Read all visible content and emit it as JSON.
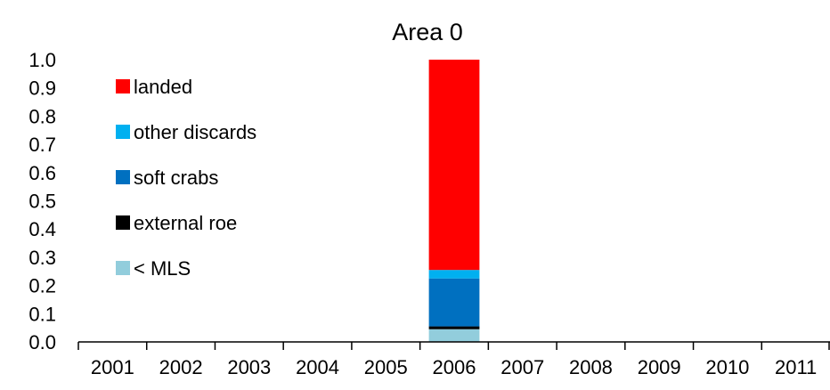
{
  "chart_data": {
    "type": "bar",
    "stacked": true,
    "title": "Area 0",
    "xlabel": "",
    "ylabel": "",
    "ylim": [
      0,
      1.0
    ],
    "yticks": [
      "0.0",
      "0.1",
      "0.2",
      "0.3",
      "0.4",
      "0.5",
      "0.6",
      "0.7",
      "0.8",
      "0.9",
      "1.0"
    ],
    "categories": [
      "2001",
      "2002",
      "2003",
      "2004",
      "2005",
      "2006",
      "2007",
      "2008",
      "2009",
      "2010",
      "2011"
    ],
    "grid": false,
    "legend_position": "top-left",
    "legend_order": [
      "landed",
      "other discards",
      "soft crabs",
      "external roe",
      "< MLS"
    ],
    "series": [
      {
        "name": "< MLS",
        "color": "#92CDDC",
        "values": [
          0,
          0,
          0,
          0,
          0,
          0.045,
          0,
          0,
          0,
          0,
          0
        ]
      },
      {
        "name": "external roe",
        "color": "#000000",
        "values": [
          0,
          0,
          0,
          0,
          0,
          0.01,
          0,
          0,
          0,
          0,
          0
        ]
      },
      {
        "name": "soft crabs",
        "color": "#0070C0",
        "values": [
          0,
          0,
          0,
          0,
          0,
          0.17,
          0,
          0,
          0,
          0,
          0
        ]
      },
      {
        "name": "other discards",
        "color": "#00B0F0",
        "values": [
          0,
          0,
          0,
          0,
          0,
          0.03,
          0,
          0,
          0,
          0,
          0
        ]
      },
      {
        "name": "landed",
        "color": "#FF0000",
        "values": [
          0,
          0,
          0,
          0,
          0,
          0.745,
          0,
          0,
          0,
          0,
          0
        ]
      }
    ]
  }
}
